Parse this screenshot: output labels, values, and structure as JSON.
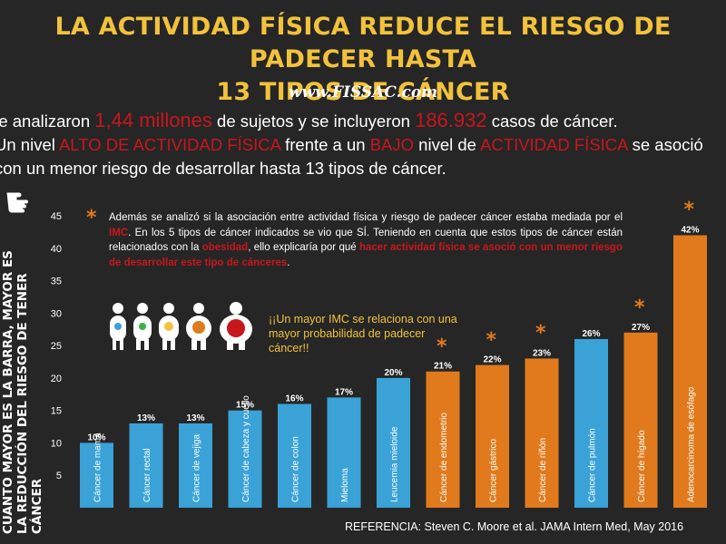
{
  "title_line1": "LA ACTIVIDAD FÍSICA REDUCE EL RIESGO DE PADECER HASTA",
  "title_line2": "13 TIPOS DE CÁNCER",
  "website": "www.FISSAC.com",
  "intro": {
    "l1a": "Se analizaron ",
    "l1b": "1,44 millones",
    "l1c": " de sujetos y se incluyeron ",
    "l1d": "186.932",
    "l1e": " casos de cáncer.",
    "l2a": "Un nivel ",
    "l2b": "ALTO DE ACTIVIDAD FÍSICA",
    "l2c": " frente a un ",
    "l2d": "BAJO",
    "l2e": " nivel de ",
    "l2f": "ACTIVIDAD FÍSICA",
    "l2g": " se asoció",
    "l3": "con un menor riesgo de desarrollar hasta 13 tipos de cáncer."
  },
  "vertical_label": "CUANTO MAYOR ES LA BARRA, MAYOR ES LA REDUCCIÓN DEL RIESGO DE TENER CÁNCER",
  "note": {
    "star": "*",
    "a": "Además se analizó si la asociación entre actividad física y riesgo de padecer cáncer estaba mediada por el ",
    "b": "IMC",
    "c": ". En los 5 tipos de cáncer indicados se vio que SÍ. Teniendo en cuenta que estos tipos de cáncer están relacionados con la ",
    "d": "obesidad",
    "e": ", ello explicaría por qué ",
    "f": "hacer actividad física se asoció con un menor riesgo de desarrollar este tipo de cánceres",
    "g": "."
  },
  "imc_note": "¡¡Un mayor IMC se relaciona con una mayor probabilidad de padecer cáncer!!",
  "reference": "REFERENCIA: Steven C. Moore et al. JAMA Intern Med, May 2016",
  "colors": {
    "blue": "#3aa2d6",
    "orange": "#e07a1c",
    "yellow": "#f2c23c",
    "red": "#c8161d"
  },
  "chart_data": {
    "type": "bar",
    "ylim": [
      0,
      45
    ],
    "yticks": [
      5,
      10,
      15,
      20,
      25,
      30,
      35,
      40,
      45
    ],
    "categories": [
      "Cáncer de mama",
      "Cáncer rectal",
      "Cáncer de vejiga",
      "Cáncer de cabeza y cuello",
      "Cáncer de colon",
      "Mieloma",
      "Leucemia mieloide",
      "Cáncer de endometrio",
      "Cáncer gástrico",
      "Cáncer de riñón",
      "Cáncer de pulmón",
      "Cáncer de hígado",
      "Adenocarcinoma de esófago"
    ],
    "values": [
      10,
      13,
      13,
      15,
      16,
      17,
      20,
      21,
      22,
      23,
      26,
      27,
      42
    ],
    "value_labels": [
      "10%",
      "13%",
      "13%",
      "15%",
      "16%",
      "17%",
      "20%",
      "21%",
      "22%",
      "23%",
      "26%",
      "27%",
      "42%"
    ],
    "bar_colors": [
      "blue",
      "blue",
      "blue",
      "blue",
      "blue",
      "blue",
      "blue",
      "orange",
      "orange",
      "orange",
      "blue",
      "orange",
      "orange"
    ],
    "imc_mediated": [
      false,
      false,
      false,
      false,
      false,
      false,
      false,
      true,
      true,
      true,
      false,
      true,
      true
    ],
    "grid": false
  }
}
